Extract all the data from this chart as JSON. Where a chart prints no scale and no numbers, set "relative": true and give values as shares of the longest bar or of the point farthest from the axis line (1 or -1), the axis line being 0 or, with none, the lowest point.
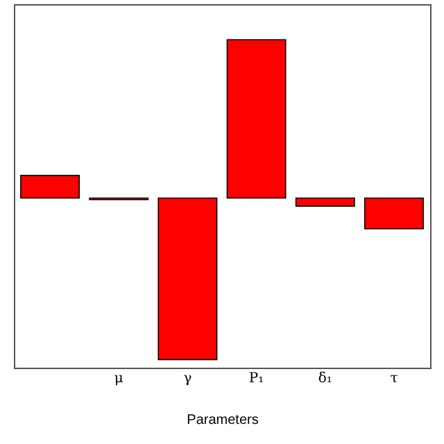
{
  "chart_data": {
    "type": "bar",
    "xlabel": "Parameters",
    "relative": true,
    "categories": [
      null,
      "μ",
      "γ",
      "P₁",
      "δ₁",
      "τ"
    ],
    "values": [
      0.14,
      -0.01,
      -1,
      0.98,
      -0.05,
      -0.19
    ],
    "color": "#ff0000"
  }
}
